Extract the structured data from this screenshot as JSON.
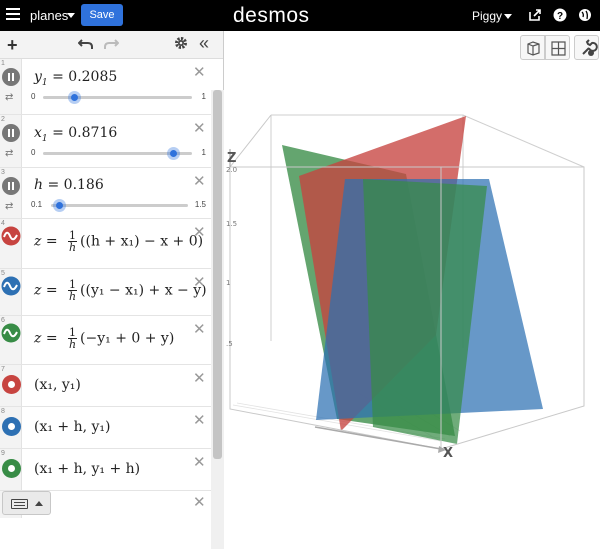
{
  "topbar": {
    "graph_title": "planes",
    "save_label": "Save",
    "logo": "desmos",
    "user_name": "Piggy",
    "icons": [
      "share-icon",
      "help-icon",
      "globe-icon"
    ]
  },
  "toolbar": {
    "add_icon": "+",
    "undo_icon": "undo",
    "redo_icon": "redo",
    "settings_icon": "gear",
    "collapse_icon": "«"
  },
  "expressions": [
    {
      "index": "1",
      "kind": "slider",
      "var": "y",
      "sub": "1",
      "eq": "= 0.2085",
      "min": "0",
      "max": "1",
      "value": 0.2085,
      "slider_min": 0,
      "slider_max": 1
    },
    {
      "index": "2",
      "kind": "slider",
      "var": "x",
      "sub": "1",
      "eq": "= 0.8716",
      "min": "0",
      "max": "1",
      "value": 0.8716,
      "slider_min": 0,
      "slider_max": 1
    },
    {
      "index": "3",
      "kind": "slider",
      "var": "h",
      "sub": "",
      "eq": "= 0.186",
      "min": "0.1",
      "max": "1.5",
      "value": 0.186,
      "slider_min": 0.1,
      "slider_max": 1.5
    },
    {
      "index": "4",
      "kind": "surface",
      "color": "#c74440",
      "lhs": "z",
      "eqsign": "=",
      "fn": "1",
      "fd": "h",
      "body": "((h + x₁) − x + 0)"
    },
    {
      "index": "5",
      "kind": "surface",
      "color": "#2d70b3",
      "lhs": "z",
      "eqsign": "=",
      "fn": "1",
      "fd": "h",
      "body": "((y₁ − x₁) + x − y)"
    },
    {
      "index": "6",
      "kind": "surface",
      "color": "#388c46",
      "lhs": "z",
      "eqsign": "=",
      "fn": "1",
      "fd": "h",
      "body": "(−y₁ + 0 + y)"
    },
    {
      "index": "7",
      "kind": "point",
      "color": "#c74440",
      "text": "(x₁, y₁)"
    },
    {
      "index": "8",
      "kind": "point",
      "color": "#2d70b3",
      "text": "(x₁ + h, y₁)"
    },
    {
      "index": "9",
      "kind": "point",
      "color": "#388c46",
      "text": "(x₁ + h, y₁ + h)"
    }
  ],
  "graph": {
    "axis_z": "Z",
    "axis_x": "X",
    "z_ticks": [
      "2.0",
      "1.5",
      "1",
      ".5"
    ],
    "plane_colors": {
      "red": "#c74440",
      "blue": "#2d70b3",
      "green": "#388c46"
    }
  }
}
